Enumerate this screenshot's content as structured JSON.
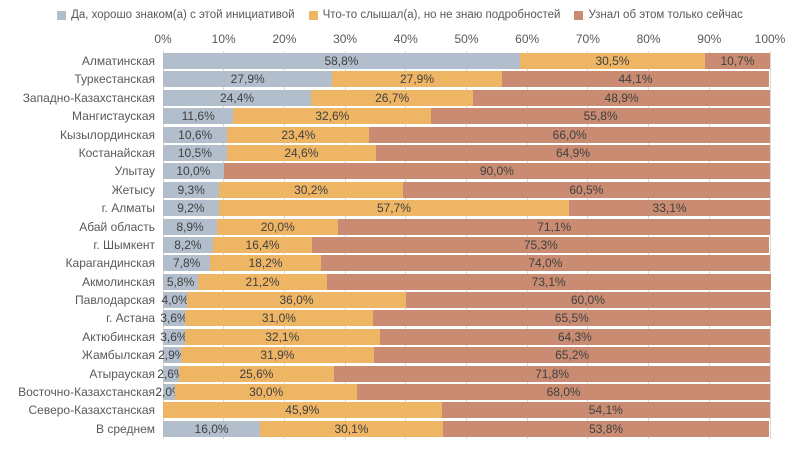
{
  "chart_data": {
    "type": "bar",
    "orientation": "horizontal",
    "stacked": true,
    "legend_position": "top",
    "grid": true,
    "categories": [
      "Алматинская",
      "Туркестанская",
      "Западно-Казахстанская",
      "Мангистауская",
      "Кызылординская",
      "Костанайская",
      "Улытау",
      "Жетысу",
      "г. Алматы",
      "Абай область",
      "г. Шымкент",
      "Карагандинская",
      "Акмолинская",
      "Павлодарская",
      "г. Астана",
      "Актюбинская",
      "Жамбылская",
      "Атырауская",
      "Восточно-Казахстанская",
      "Северо-Казахстанская",
      "В среднем"
    ],
    "series": [
      {
        "name": "Да, хорошо знаком(а) с этой инициативой",
        "color": "#b2becc",
        "values": [
          58.8,
          27.9,
          24.4,
          11.6,
          10.6,
          10.5,
          10.0,
          9.3,
          9.2,
          8.9,
          8.2,
          7.8,
          5.8,
          4.0,
          3.6,
          3.6,
          2.9,
          2.6,
          2.0,
          0,
          16.0
        ],
        "labels": [
          "58,8%",
          "27,9%",
          "24,4%",
          "11,6%",
          "10,6%",
          "10,5%",
          "10,0%",
          "9,3%",
          "9,2%",
          "8,9%",
          "8,2%",
          "7,8%",
          "5,8%",
          "4,0%",
          "3,6%",
          "3,6%",
          "2,9%",
          "2,6%",
          "2,0%",
          "",
          "16,0%"
        ]
      },
      {
        "name": "Что-то слышал(а), но не знаю подробностей",
        "color": "#eeb564",
        "values": [
          30.5,
          27.9,
          26.7,
          32.6,
          23.4,
          24.6,
          0,
          30.2,
          57.7,
          20.0,
          16.4,
          18.2,
          21.2,
          36.0,
          31.0,
          32.1,
          31.9,
          25.6,
          30.0,
          45.9,
          30.1
        ],
        "labels": [
          "30,5%",
          "27,9%",
          "26,7%",
          "32,6%",
          "23,4%",
          "24,6%",
          "",
          "30,2%",
          "57,7%",
          "20,0%",
          "16,4%",
          "18,2%",
          "21,2%",
          "36,0%",
          "31,0%",
          "32,1%",
          "31,9%",
          "25,6%",
          "30,0%",
          "45,9%",
          "30,1%"
        ]
      },
      {
        "name": "Узнал об этом только сейчас",
        "color": "#c98b71",
        "values": [
          10.7,
          44.1,
          48.9,
          55.8,
          66.0,
          64.9,
          90.0,
          60.5,
          33.1,
          71.1,
          75.3,
          74.0,
          73.1,
          60.0,
          65.5,
          64.3,
          65.2,
          71.8,
          68.0,
          54.1,
          53.8
        ],
        "labels": [
          "10,7%",
          "44,1%",
          "48,9%",
          "55,8%",
          "66,0%",
          "64,9%",
          "90,0%",
          "60,5%",
          "33,1%",
          "71,1%",
          "75,3%",
          "74,0%",
          "73,1%",
          "60,0%",
          "65,5%",
          "64,3%",
          "65,2%",
          "71,8%",
          "68,0%",
          "54,1%",
          "53,8%"
        ]
      }
    ],
    "x_axis": {
      "min": 0,
      "max": 100,
      "ticks": [
        "0%",
        "10%",
        "20%",
        "30%",
        "40%",
        "50%",
        "60%",
        "70%",
        "80%",
        "90%",
        "100%"
      ]
    }
  }
}
